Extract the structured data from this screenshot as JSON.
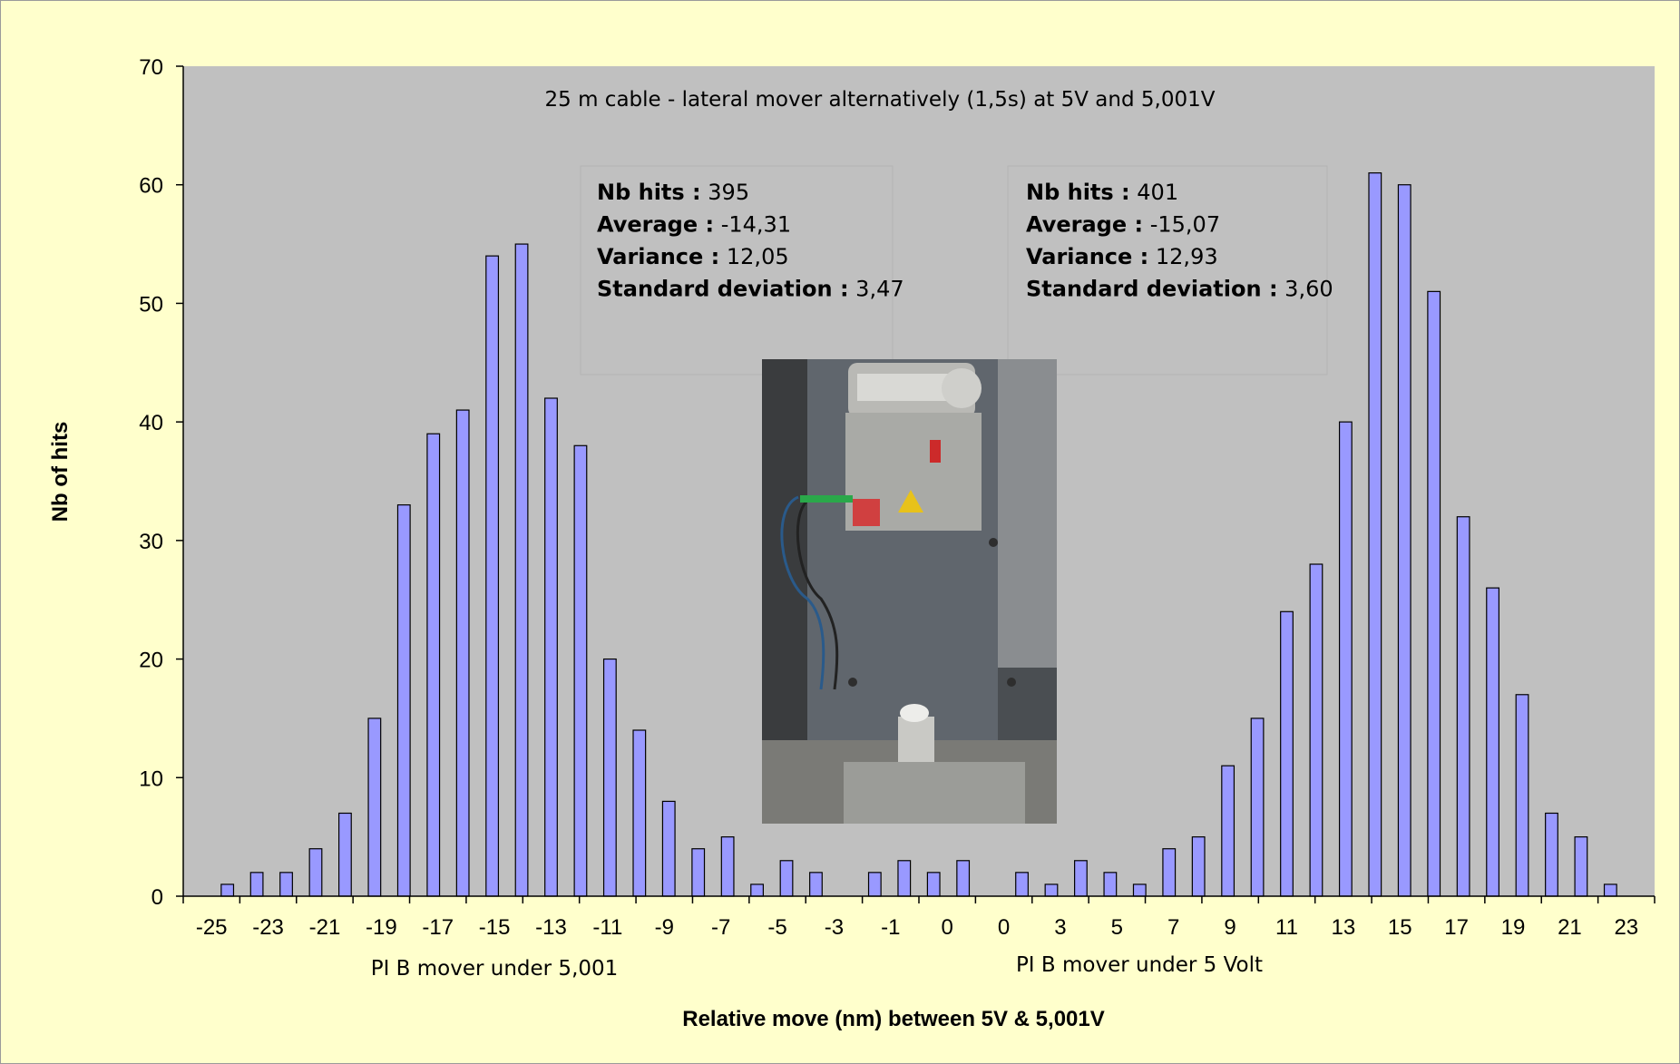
{
  "chart_data": {
    "type": "bar",
    "ylabel": "Nb of hits",
    "xlabel": "Relative move (nm) between 5V & 5,001V",
    "ylim": [
      0,
      70
    ],
    "yticks": [
      0,
      10,
      20,
      30,
      40,
      50,
      60,
      70
    ],
    "xticks": [
      "-25",
      "-23",
      "-21",
      "-19",
      "-17",
      "-15",
      "-13",
      "-11",
      "-9",
      "-7",
      "-5",
      "-3",
      "-1",
      "0",
      "0",
      "3",
      "5",
      "7",
      "9",
      "11",
      "13",
      "15",
      "17",
      "19",
      "21",
      "23"
    ],
    "annotation": "25 m cable - lateral mover alternatively (1,5s) at 5V and 5,001V",
    "group_labels": [
      "PI B mover under 5,001",
      "PI B mover under 5 Volt"
    ],
    "values": [
      0,
      1,
      2,
      2,
      4,
      7,
      15,
      33,
      39,
      41,
      54,
      55,
      42,
      38,
      20,
      14,
      8,
      4,
      5,
      1,
      3,
      2,
      0,
      2,
      3,
      2,
      3,
      0,
      2,
      1,
      3,
      2,
      1,
      4,
      5,
      11,
      15,
      24,
      28,
      40,
      61,
      60,
      51,
      32,
      26,
      17,
      7,
      5,
      1,
      0
    ],
    "bar_color": "#9999ff",
    "plot_bg": "#c0c0c0",
    "stats": [
      [
        {
          "k": "Nb hits :",
          "v": " 395"
        },
        {
          "k": "Average :",
          "v": " -14,31"
        },
        {
          "k": "Variance :",
          "v": " 12,05"
        },
        {
          "k": "Standard deviation :",
          "v": " 3,47"
        }
      ],
      [
        {
          "k": "Nb hits :",
          "v": " 401"
        },
        {
          "k": "Average :",
          "v": " -15,07"
        },
        {
          "k": "Variance :",
          "v": " 12,93"
        },
        {
          "k": "Standard deviation :",
          "v": " 3,60"
        }
      ]
    ]
  }
}
